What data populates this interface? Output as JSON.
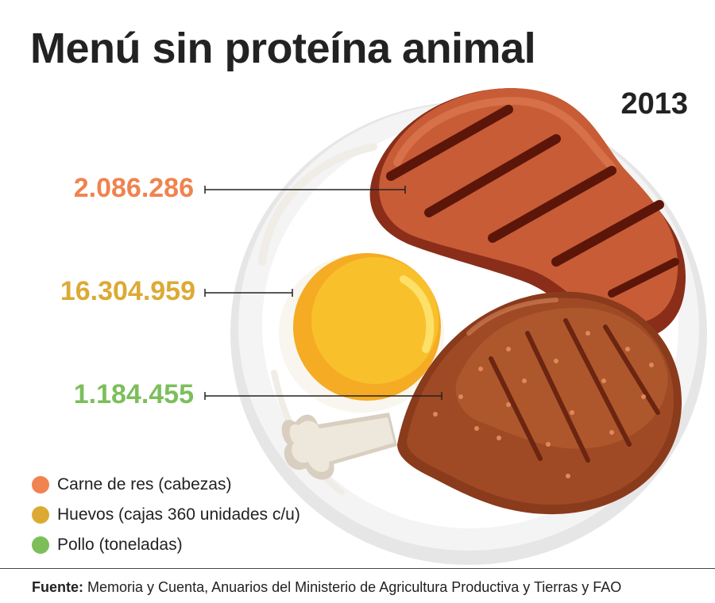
{
  "title": "Menú sin proteína animal",
  "year": "2013",
  "items": [
    {
      "value": "2.086.286",
      "legend": "Carne de res (cabezas)",
      "color": "#F0834F"
    },
    {
      "value": "16.304.959",
      "legend": "Huevos (cajas 360 unidades c/u)",
      "color": "#DCAA34"
    },
    {
      "value": "1.184.455",
      "legend": "Pollo (toneladas)",
      "color": "#7DBE5B"
    }
  ],
  "source": {
    "label": "Fuente:",
    "text": "Memoria y Cuenta, Anuarios del Ministerio de Agricultura Productiva y Tierras y FAO"
  },
  "icons": [
    "plate-icon",
    "steak-icon",
    "egg-yolk-icon",
    "chicken-leg-icon"
  ]
}
